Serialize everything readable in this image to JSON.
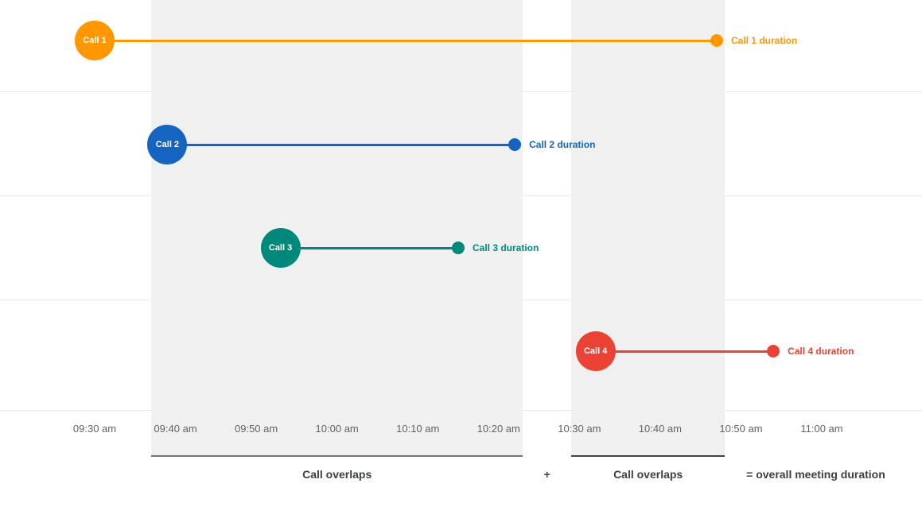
{
  "chart_data": {
    "type": "timeline",
    "title": "",
    "grid": "horizontal",
    "legend": "none",
    "time_axis": {
      "start": "09:30",
      "end": "11:00",
      "ticks": [
        {
          "time": "09:30",
          "label": "09:30 am"
        },
        {
          "time": "09:40",
          "label": "09:40 am"
        },
        {
          "time": "09:50",
          "label": "09:50 am"
        },
        {
          "time": "10:00",
          "label": "10:00 am"
        },
        {
          "time": "10:10",
          "label": "10:10 am"
        },
        {
          "time": "10:20",
          "label": "10:20 am"
        },
        {
          "time": "10:30",
          "label": "10:30 am"
        },
        {
          "time": "10:40",
          "label": "10:40 am"
        },
        {
          "time": "10:50",
          "label": "10:50 am"
        },
        {
          "time": "11:00",
          "label": "11:00 am"
        }
      ]
    },
    "calls": [
      {
        "name": "Call 1",
        "start": "09:30",
        "end": "10:47",
        "duration_label": "Call 1 duration",
        "color": "#FF9800"
      },
      {
        "name": "Call 2",
        "start": "09:39",
        "end": "10:22",
        "duration_label": "Call 2 duration",
        "color": "#1565C0"
      },
      {
        "name": "Call 3",
        "start": "09:53",
        "end": "10:15",
        "duration_label": "Call 3 duration",
        "color": "#00897B"
      },
      {
        "name": "Call 4",
        "start": "10:32",
        "end": "10:54",
        "duration_label": "Call 4 duration",
        "color": "#EA4335"
      }
    ],
    "overlap_regions": [
      {
        "start": "09:37",
        "end": "10:23",
        "underline_color": "#757575"
      },
      {
        "start": "10:29",
        "end": "10:48",
        "underline_color": "#424242"
      }
    ],
    "annotations": {
      "overlap_label": "Call overlaps",
      "plus_label": "+",
      "result_label": "= overall meeting duration"
    },
    "colors": {
      "band": "#f0f0f0",
      "gridline": "#e8e8e8",
      "axis_text": "#5f6368",
      "annotation_text": "#3c4043"
    }
  }
}
